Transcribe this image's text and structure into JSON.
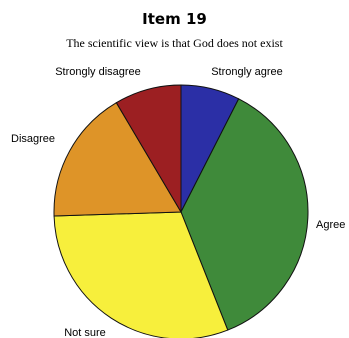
{
  "chart_data": {
    "type": "pie",
    "title": "Item 19",
    "subtitle": "The scientific view is that God does not exist",
    "slices": [
      {
        "label": "Strongly agree",
        "value": 7.5,
        "color": "#2b2fa6"
      },
      {
        "label": "Agree",
        "value": 36.5,
        "color": "#3f8a3a"
      },
      {
        "label": "Not sure",
        "value": 30.5,
        "color": "#f7ef3c"
      },
      {
        "label": "Disagree",
        "value": 17.0,
        "color": "#de9428"
      },
      {
        "label": "Strongly disagree",
        "value": 8.5,
        "color": "#9c1f22"
      }
    ]
  }
}
